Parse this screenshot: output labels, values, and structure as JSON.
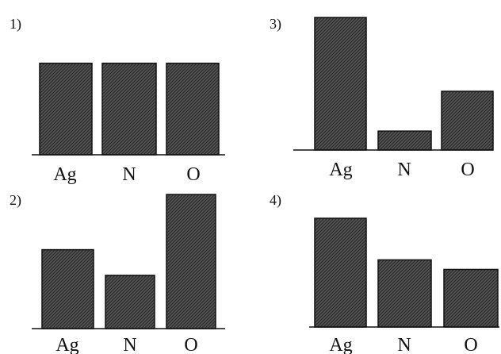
{
  "colors": {
    "bar_fill": "#555555",
    "bar_hatch": "#2b2b2b",
    "bar_edge": "#111111",
    "axis": "#111111"
  },
  "chart_data": [
    {
      "type": "bar",
      "label": "1)",
      "categories": [
        "Ag",
        "N",
        "O"
      ],
      "values": [
        1,
        1,
        1
      ],
      "ylim": [
        0,
        1.5
      ],
      "grid": false
    },
    {
      "type": "bar",
      "label": "3)",
      "categories": [
        "Ag",
        "N",
        "O"
      ],
      "values": [
        7,
        1,
        3.1
      ],
      "ylim": [
        0,
        7
      ],
      "grid": false
    },
    {
      "type": "bar",
      "label": "2)",
      "categories": [
        "Ag",
        "N",
        "O"
      ],
      "values": [
        2,
        1.35,
        3.4
      ],
      "ylim": [
        0,
        3.4
      ],
      "grid": false
    },
    {
      "type": "bar",
      "label": "4)",
      "categories": [
        "Ag",
        "N",
        "O"
      ],
      "values": [
        3.4,
        2.1,
        1.8
      ],
      "ylim": [
        0,
        3.4
      ],
      "grid": false
    }
  ]
}
